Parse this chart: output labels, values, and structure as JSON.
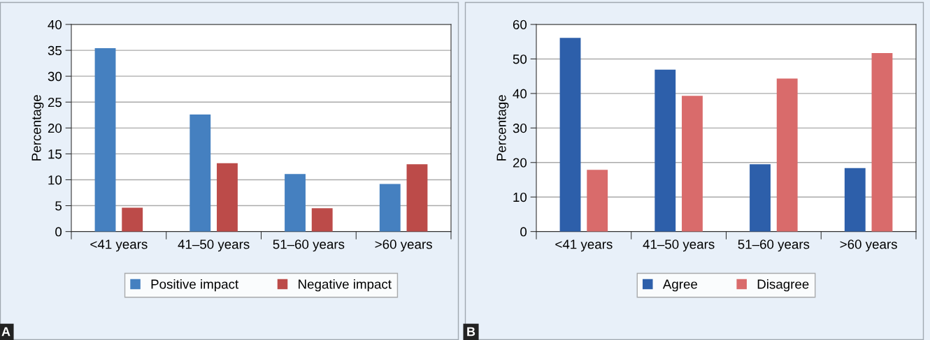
{
  "chart_data": [
    {
      "type": "bar",
      "ylabel": "Percentage",
      "categories": [
        "<41 years",
        "41–50 years",
        "51–60 years",
        ">60 years"
      ],
      "series": [
        {
          "name": "Positive impact",
          "color": "#4580c0",
          "values": [
            35.4,
            22.6,
            11.1,
            9.2
          ]
        },
        {
          "name": "Negative impact",
          "color": "#bc4b49",
          "values": [
            4.6,
            13.2,
            4.5,
            13.0
          ]
        }
      ],
      "ylim": [
        0,
        40
      ],
      "yticks": [
        0,
        5,
        10,
        15,
        20,
        25,
        30,
        35,
        40
      ],
      "grid": "y",
      "legend": "bottom",
      "annotations": [
        "A"
      ]
    },
    {
      "type": "bar",
      "ylabel": "Percentage",
      "categories": [
        "<41 years",
        "41–50 years",
        "51–60 years",
        ">60 years"
      ],
      "series": [
        {
          "name": "Agree",
          "color": "#2d5faa",
          "values": [
            56.1,
            46.9,
            19.5,
            18.4
          ]
        },
        {
          "name": "Disagree",
          "color": "#d96b6b",
          "values": [
            17.9,
            39.3,
            44.3,
            51.7
          ]
        }
      ],
      "ylim": [
        0,
        60
      ],
      "yticks": [
        0,
        10,
        20,
        30,
        40,
        50,
        60
      ],
      "grid": "y",
      "legend": "bottom",
      "annotations": [
        "B"
      ]
    }
  ]
}
